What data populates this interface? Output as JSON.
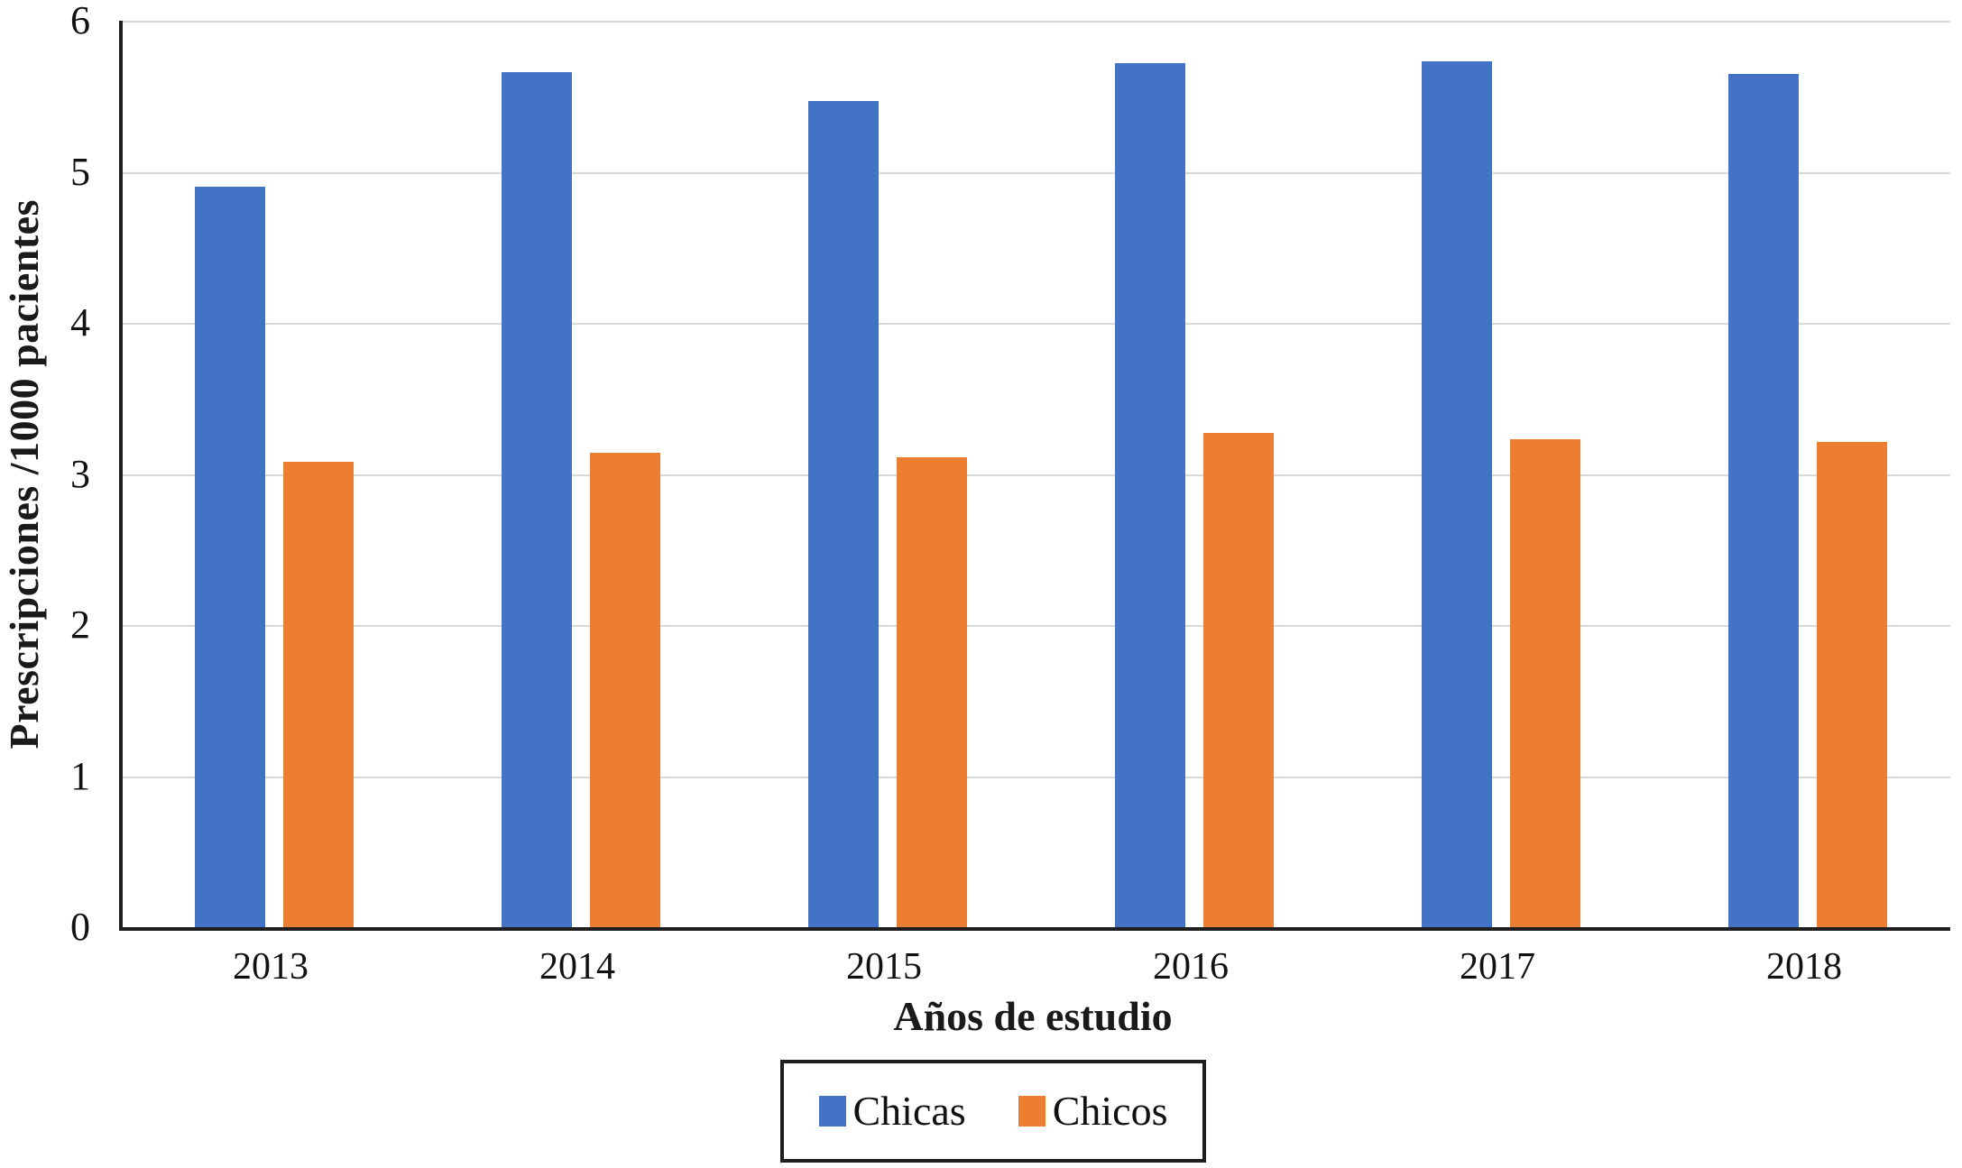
{
  "chart_data": {
    "type": "bar",
    "title": "",
    "categories": [
      "2013",
      "2014",
      "2015",
      "2016",
      "2017",
      "2018"
    ],
    "series": [
      {
        "name": "Chicas",
        "color": "#4472C4",
        "values": [
          4.9,
          5.66,
          5.47,
          5.72,
          5.73,
          5.65
        ]
      },
      {
        "name": "Chicos",
        "color": "#ED7D31",
        "values": [
          3.08,
          3.14,
          3.11,
          3.27,
          3.23,
          3.21
        ]
      }
    ],
    "xlabel": "Años de estudio",
    "ylabel": "Prescripciones /1000 pacientes",
    "ylim": [
      0,
      6
    ],
    "yticks": [
      0,
      1,
      2,
      3,
      4,
      5,
      6
    ],
    "grid": true,
    "gridline_color": "#d9d9d9",
    "axis_color": "#1f1f1f",
    "legend_position": "bottom",
    "legend_border": true
  }
}
